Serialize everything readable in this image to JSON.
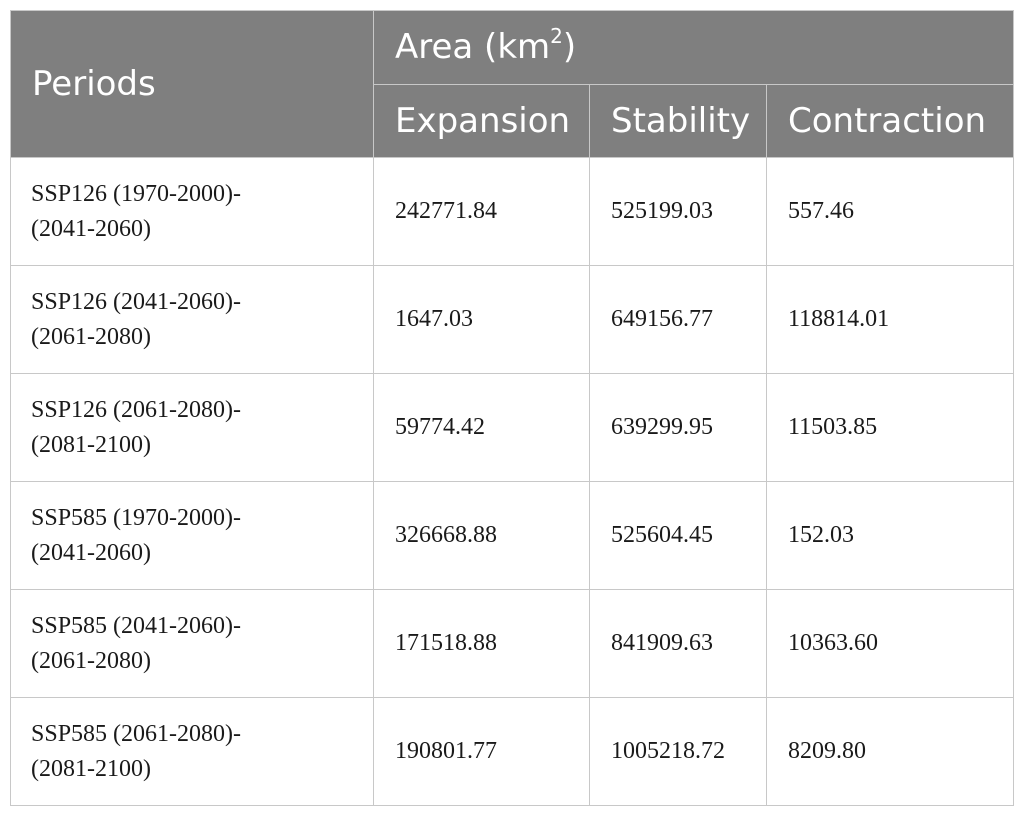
{
  "table": {
    "header": {
      "periods_label": "Periods",
      "area_label": "Area (km",
      "area_superscript": "2",
      "area_suffix": ")",
      "columns": [
        "Expansion",
        "Stability",
        "Contraction"
      ]
    },
    "rows": [
      {
        "period_line1": "SSP126 (1970-2000)-",
        "period_line2": "(2041-2060)",
        "expansion": "242771.84",
        "stability": "525199.03",
        "contraction": "557.46"
      },
      {
        "period_line1": "SSP126 (2041-2060)-",
        "period_line2": "(2061-2080)",
        "expansion": "1647.03",
        "stability": "649156.77",
        "contraction": "118814.01"
      },
      {
        "period_line1": "SSP126 (2061-2080)-",
        "period_line2": "(2081-2100)",
        "expansion": "59774.42",
        "stability": "639299.95",
        "contraction": "11503.85"
      },
      {
        "period_line1": "SSP585 (1970-2000)-",
        "period_line2": "(2041-2060)",
        "expansion": "326668.88",
        "stability": "525604.45",
        "contraction": "152.03"
      },
      {
        "period_line1": "SSP585 (2041-2060)-",
        "period_line2": "(2061-2080)",
        "expansion": "171518.88",
        "stability": "841909.63",
        "contraction": "10363.60"
      },
      {
        "period_line1": "SSP585 (2061-2080)-",
        "period_line2": "(2081-2100)",
        "expansion": "190801.77",
        "stability": "1005218.72",
        "contraction": "8209.80"
      }
    ]
  },
  "colors": {
    "header_bg": "#7f7f7f",
    "header_text": "#ffffff",
    "border": "#c8c8c8"
  }
}
